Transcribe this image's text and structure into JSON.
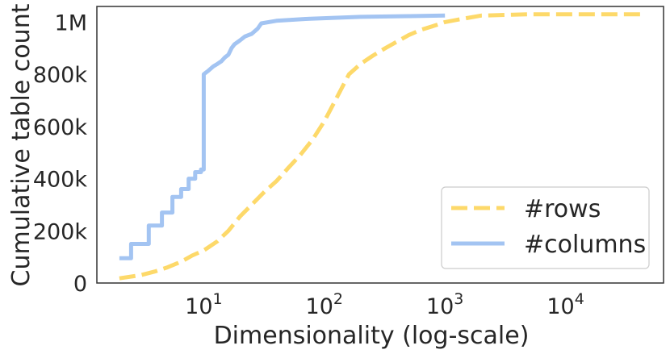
{
  "chart_data": {
    "type": "line",
    "title": "",
    "xlabel": "Dimensionality (log-scale)",
    "ylabel": "Cumulative table count",
    "x_scale": "log",
    "xlim": [
      1.3,
      65000
    ],
    "ylim": [
      0,
      1060000
    ],
    "x_ticks": [
      {
        "value": 10,
        "base": "10",
        "exp": "1"
      },
      {
        "value": 100,
        "base": "10",
        "exp": "2"
      },
      {
        "value": 1000,
        "base": "10",
        "exp": "3"
      },
      {
        "value": 10000,
        "base": "10",
        "exp": "4"
      }
    ],
    "y_ticks": [
      {
        "value": 0,
        "label": "0"
      },
      {
        "value": 200000,
        "label": "200k"
      },
      {
        "value": 400000,
        "label": "400k"
      },
      {
        "value": 600000,
        "label": "600k"
      },
      {
        "value": 800000,
        "label": "800k"
      },
      {
        "value": 1000000,
        "label": "1M"
      }
    ],
    "grid": false,
    "legend_position": "lower-right",
    "series": [
      {
        "name": "#rows",
        "style": "dashed",
        "color": "#FDD96A",
        "points": [
          [
            2,
            18000
          ],
          [
            3,
            30000
          ],
          [
            4,
            45000
          ],
          [
            5,
            60000
          ],
          [
            6,
            75000
          ],
          [
            7,
            90000
          ],
          [
            8,
            105000
          ],
          [
            10,
            125000
          ],
          [
            13,
            160000
          ],
          [
            16,
            200000
          ],
          [
            20,
            255000
          ],
          [
            25,
            300000
          ],
          [
            32,
            350000
          ],
          [
            40,
            390000
          ],
          [
            50,
            440000
          ],
          [
            63,
            490000
          ],
          [
            80,
            550000
          ],
          [
            100,
            620000
          ],
          [
            130,
            720000
          ],
          [
            160,
            800000
          ],
          [
            200,
            840000
          ],
          [
            250,
            870000
          ],
          [
            320,
            900000
          ],
          [
            400,
            925000
          ],
          [
            500,
            950000
          ],
          [
            630,
            970000
          ],
          [
            800,
            985000
          ],
          [
            1000,
            1000000
          ],
          [
            1300,
            1010000
          ],
          [
            2000,
            1025000
          ],
          [
            5000,
            1030000
          ],
          [
            45000,
            1030000
          ]
        ]
      },
      {
        "name": "#columns",
        "style": "solid",
        "color": "#A3C4F2",
        "points": [
          [
            2,
            95000
          ],
          [
            2.5,
            95000
          ],
          [
            2.5,
            150000
          ],
          [
            3.5,
            150000
          ],
          [
            3.5,
            220000
          ],
          [
            4.5,
            220000
          ],
          [
            4.5,
            270000
          ],
          [
            5.5,
            270000
          ],
          [
            5.5,
            330000
          ],
          [
            6.5,
            330000
          ],
          [
            6.5,
            360000
          ],
          [
            7.5,
            360000
          ],
          [
            7.5,
            400000
          ],
          [
            8.5,
            400000
          ],
          [
            8.5,
            425000
          ],
          [
            9.5,
            425000
          ],
          [
            9.5,
            435000
          ],
          [
            10,
            435000
          ],
          [
            10,
            800000
          ],
          [
            11,
            815000
          ],
          [
            12,
            830000
          ],
          [
            13,
            840000
          ],
          [
            14,
            850000
          ],
          [
            15,
            865000
          ],
          [
            16,
            875000
          ],
          [
            17,
            900000
          ],
          [
            18,
            915000
          ],
          [
            20,
            930000
          ],
          [
            22,
            945000
          ],
          [
            25,
            955000
          ],
          [
            28,
            975000
          ],
          [
            30,
            995000
          ],
          [
            40,
            1005000
          ],
          [
            70,
            1012000
          ],
          [
            200,
            1020000
          ],
          [
            500,
            1023000
          ],
          [
            1000,
            1025000
          ]
        ]
      }
    ]
  }
}
